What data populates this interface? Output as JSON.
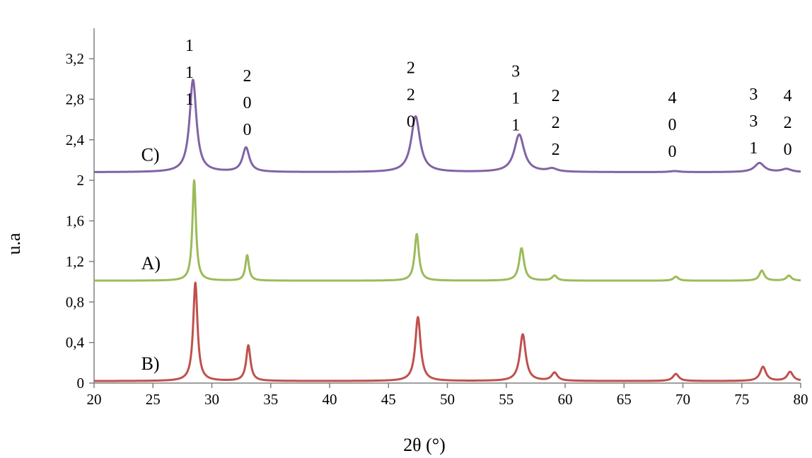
{
  "chart_data": {
    "type": "line",
    "xlabel": "2θ (°)",
    "ylabel": "u.a",
    "xlim": [
      20,
      80
    ],
    "ylim": [
      0,
      3.5
    ],
    "x_ticks": [
      "20",
      "25",
      "30",
      "35",
      "40",
      "45",
      "50",
      "55",
      "60",
      "65",
      "70",
      "75",
      "80"
    ],
    "y_ticks": [
      "0",
      "0,4",
      "0,8",
      "1,2",
      "1,6",
      "2",
      "2,4",
      "2,8",
      "3,2"
    ],
    "grid": false,
    "legend": "none",
    "series": [
      {
        "name": "C)",
        "color": "#8064a2",
        "baseline": 2.08,
        "peaks": [
          {
            "x": 28.4,
            "y": 2.99,
            "w": 0.35
          },
          {
            "x": 32.9,
            "y": 2.32,
            "w": 0.35
          },
          {
            "x": 47.3,
            "y": 2.63,
            "w": 0.45
          },
          {
            "x": 56.1,
            "y": 2.45,
            "w": 0.5
          },
          {
            "x": 58.9,
            "y": 2.11,
            "w": 0.5
          },
          {
            "x": 69.3,
            "y": 2.09,
            "w": 0.5
          },
          {
            "x": 76.5,
            "y": 2.17,
            "w": 0.5
          },
          {
            "x": 78.8,
            "y": 2.11,
            "w": 0.5
          }
        ]
      },
      {
        "name": "A)",
        "color": "#9bbb59",
        "baseline": 1.01,
        "peaks": [
          {
            "x": 28.5,
            "y": 2.0,
            "w": 0.18
          },
          {
            "x": 33.0,
            "y": 1.26,
            "w": 0.18
          },
          {
            "x": 47.4,
            "y": 1.47,
            "w": 0.22
          },
          {
            "x": 56.3,
            "y": 1.33,
            "w": 0.25
          },
          {
            "x": 59.1,
            "y": 1.06,
            "w": 0.25
          },
          {
            "x": 69.4,
            "y": 1.05,
            "w": 0.25
          },
          {
            "x": 76.7,
            "y": 1.11,
            "w": 0.25
          },
          {
            "x": 79.0,
            "y": 1.06,
            "w": 0.25
          }
        ]
      },
      {
        "name": "B)",
        "color": "#c0504d",
        "baseline": 0.02,
        "peaks": [
          {
            "x": 28.6,
            "y": 0.99,
            "w": 0.22
          },
          {
            "x": 33.1,
            "y": 0.37,
            "w": 0.22
          },
          {
            "x": 47.5,
            "y": 0.65,
            "w": 0.27
          },
          {
            "x": 56.4,
            "y": 0.48,
            "w": 0.3
          },
          {
            "x": 59.1,
            "y": 0.1,
            "w": 0.3
          },
          {
            "x": 69.4,
            "y": 0.09,
            "w": 0.3
          },
          {
            "x": 76.8,
            "y": 0.16,
            "w": 0.3
          },
          {
            "x": 79.1,
            "y": 0.11,
            "w": 0.3
          }
        ]
      }
    ],
    "annotations": [
      {
        "x": 28.1,
        "lines": [
          "1",
          "1",
          "1"
        ]
      },
      {
        "x": 33.0,
        "lines": [
          "2",
          "0",
          "0"
        ]
      },
      {
        "x": 46.9,
        "lines": [
          "2",
          "2",
          "0"
        ]
      },
      {
        "x": 55.8,
        "lines": [
          "3",
          "1",
          "1"
        ]
      },
      {
        "x": 59.2,
        "lines": [
          "2",
          "2",
          "2"
        ]
      },
      {
        "x": 69.1,
        "lines": [
          "4",
          "0",
          "0"
        ]
      },
      {
        "x": 76.0,
        "lines": [
          "3",
          "3",
          "1"
        ]
      },
      {
        "x": 78.9,
        "lines": [
          "4",
          "2",
          "0"
        ]
      }
    ]
  }
}
